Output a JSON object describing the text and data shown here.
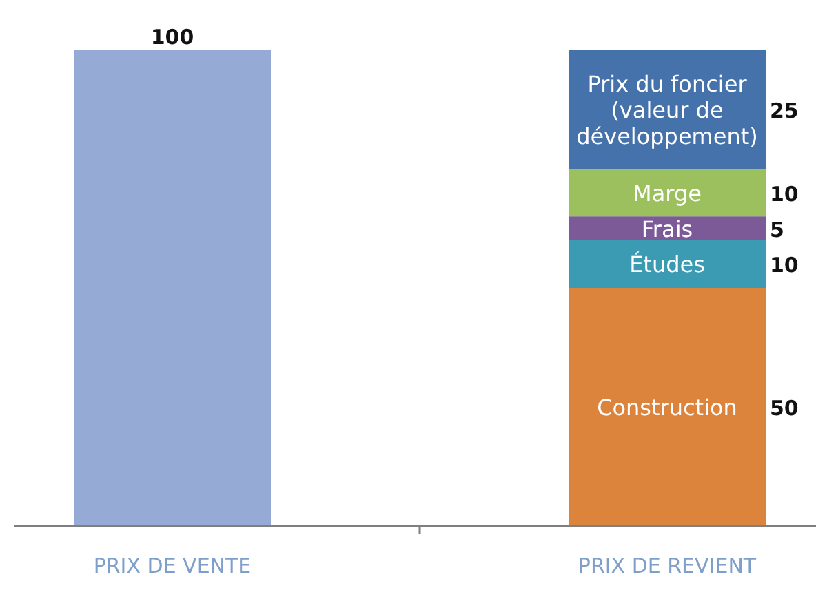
{
  "chart_data": {
    "type": "bar",
    "stacked": true,
    "data_labels": true,
    "legend": false,
    "categories": [
      "PRIX DE VENTE",
      "PRIX DE REVIENT"
    ],
    "series": [
      {
        "color": "#95abd5",
        "values": [
          100,
          null
        ]
      },
      {
        "name": "Construction",
        "color": "#dd843c",
        "values": [
          null,
          50
        ]
      },
      {
        "name": "Études",
        "color": "#3b9bb3",
        "values": [
          null,
          10
        ]
      },
      {
        "name": "Frais",
        "color": "#7c5a98",
        "values": [
          null,
          5
        ]
      },
      {
        "name": "Marge",
        "color": "#9dc05e",
        "values": [
          null,
          10
        ]
      },
      {
        "name": "Prix du foncier (valeur de développement)",
        "color": "#4572ab",
        "values": [
          null,
          25
        ]
      }
    ]
  }
}
